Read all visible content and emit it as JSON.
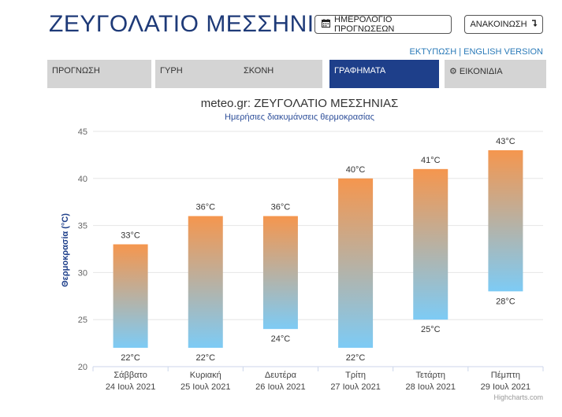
{
  "header": {
    "title": "ΖΕΥΓΟΛΑΤΙΟ ΜΕΣΣΗΝΙΑΣ",
    "calendar_button": "ΗΜΕΡΟΛΟΓΙΟ ΠΡΟΓΝΩΣΕΩΝ",
    "announcement_button": "ΑΝΑΚΟΙΝΩΣΗ",
    "print_link": "ΕΚΤΥΠΩΣΗ",
    "separator": "|",
    "english_link": "ENGLISH VERSION"
  },
  "tabs": [
    {
      "label": "ΠΡΟΓΝΩΣΗ",
      "active": false
    },
    {
      "label": "ΓΥΡΗ",
      "active": false
    },
    {
      "label": "ΣΚΟΝΗ",
      "active": false
    },
    {
      "label": "ΓΡΑΦΗΜΑΤΑ",
      "active": true
    },
    {
      "label": "ΕΙΚΟΝΙΔΙΑ",
      "active": false
    }
  ],
  "icons": {
    "calendar": "calendar-icon",
    "announce": "arrow-turn-down-icon",
    "gear": "gear-icon"
  },
  "colors": {
    "title": "#1e3a78",
    "active_tab": "#1e3f8a",
    "tab": "#d4d4d4",
    "bar_top": "#f5964e",
    "bar_bottom": "#7dcbf5",
    "link": "#2a7ab8"
  },
  "chart_data": {
    "type": "bar",
    "subtype": "range",
    "title": "meteo.gr: ΖΕΥΓΟΛΑΤΙΟ ΜΕΣΣΗΝΙΑΣ",
    "subtitle": "Ημερήσιες διακυμάνσεις θερμοκρασίας",
    "ylabel": "Θερμοκρασία (°C)",
    "ylim": [
      20,
      45
    ],
    "yticks": [
      20,
      25,
      30,
      35,
      40,
      45
    ],
    "grid": true,
    "credit": "Highcharts.com",
    "categories": [
      {
        "day": "Σάββατο",
        "date": "24 Ιουλ 2021"
      },
      {
        "day": "Κυριακή",
        "date": "25 Ιουλ 2021"
      },
      {
        "day": "Δευτέρα",
        "date": "26 Ιουλ 2021"
      },
      {
        "day": "Τρίτη",
        "date": "27 Ιουλ 2021"
      },
      {
        "day": "Τετάρτη",
        "date": "28 Ιουλ 2021"
      },
      {
        "day": "Πέμπτη",
        "date": "29 Ιουλ 2021"
      }
    ],
    "min": [
      22,
      22,
      24,
      22,
      25,
      28
    ],
    "max": [
      33,
      36,
      36,
      40,
      41,
      43
    ],
    "min_labels": [
      "22°C",
      "22°C",
      "24°C",
      "22°C",
      "25°C",
      "28°C"
    ],
    "max_labels": [
      "33°C",
      "36°C",
      "36°C",
      "40°C",
      "41°C",
      "43°C"
    ]
  }
}
